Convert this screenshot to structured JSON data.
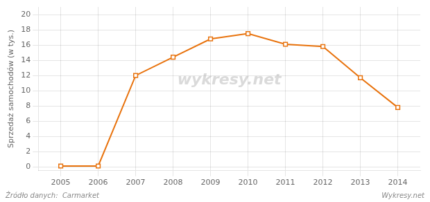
{
  "chart_data": {
    "type": "line",
    "x": [
      2005,
      2006,
      2007,
      2008,
      2009,
      2010,
      2011,
      2012,
      2013,
      2014
    ],
    "values": [
      0.12,
      0.12,
      12.0,
      14.4,
      16.8,
      17.5,
      16.1,
      15.8,
      11.7,
      7.8
    ],
    "color": "#E8720C",
    "marker": "square",
    "xlim": [
      2004.4,
      2014.6
    ],
    "xticks": [
      2005,
      2006,
      2007,
      2008,
      2009,
      2010,
      2011,
      2012,
      2013,
      2014
    ],
    "ylim": [
      -0.5,
      21
    ],
    "yticks": [
      0,
      2,
      4,
      6,
      8,
      10,
      12,
      14,
      16,
      18,
      20
    ],
    "ylabel": "Sprzedaż samochodów (w tys.)",
    "grid": true,
    "annotations": [
      "wykresy.net",
      "Źródło danych:  Carmarket",
      "Wykresy.net"
    ]
  }
}
